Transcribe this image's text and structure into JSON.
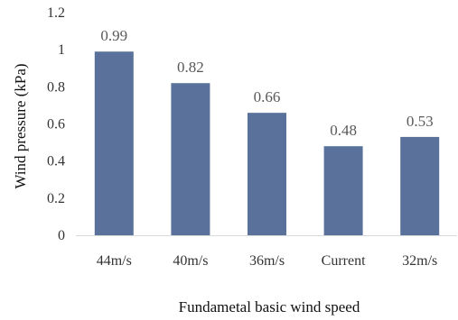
{
  "chart_data": {
    "type": "bar",
    "title": "",
    "xlabel": "Fundametal basic wind speed",
    "ylabel": "Wind pressure (kPa)",
    "categories": [
      "44m/s",
      "40m/s",
      "36m/s",
      "Current",
      "32m/s"
    ],
    "values": [
      0.99,
      0.82,
      0.66,
      0.48,
      0.53
    ],
    "value_labels": [
      "0.99",
      "0.82",
      "0.66",
      "0.48",
      "0.53"
    ],
    "yticks": [
      "0",
      "0.2",
      "0.4",
      "0.6",
      "0.8",
      "1",
      "1.2"
    ],
    "ylim": [
      0,
      1.2
    ],
    "grid": false,
    "legend": "none",
    "bar_color": "#5a729b",
    "axis_color": "#d9d9d9"
  }
}
